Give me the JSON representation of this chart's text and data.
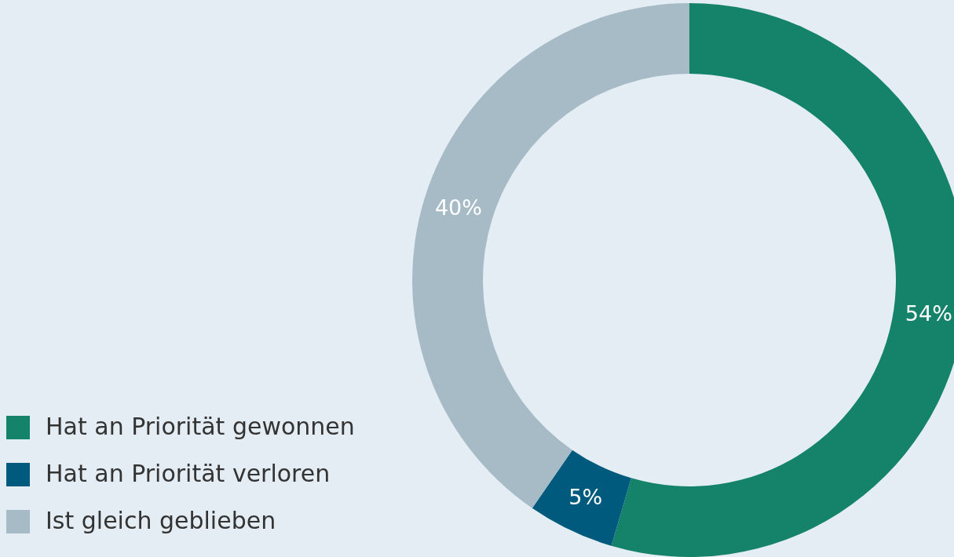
{
  "chart_data": {
    "type": "donut",
    "categories": [
      "Hat an Priorität gewonnen",
      "Hat an Priorität verloren",
      "Ist gleich geblieben"
    ],
    "values": [
      54,
      5,
      40
    ],
    "colors": [
      "#15826a",
      "#005a7d",
      "#a7bbc7"
    ],
    "value_labels": [
      "54%",
      "5%",
      "40%"
    ],
    "legend": "bottom left"
  }
}
